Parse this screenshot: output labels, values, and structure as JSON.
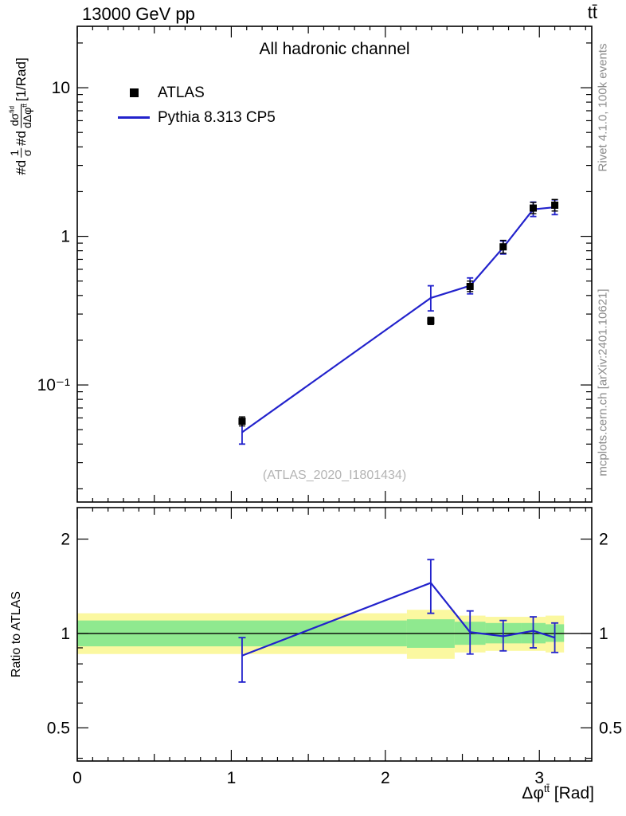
{
  "header": {
    "left": "13000 GeV pp",
    "right": "tt̄"
  },
  "main_plot": {
    "title": "All hadronic channel",
    "watermark": "(ATLAS_2020_I1801434)",
    "ylabel": {
      "pre1": "#d",
      "frac1_num": "1",
      "frac1_den": "σ",
      "pre2": "#d",
      "frac2_num_base": "dσ",
      "frac2_num_sup": "fid",
      "frac2_den_base": "dΔφ",
      "frac2_den_sup": "tt̄",
      "suffix": "[1/Rad]"
    }
  },
  "legend": {
    "atlas": "ATLAS",
    "pythia": "Pythia 8.313 CP5"
  },
  "ratio_plot": {
    "ylabel": "Ratio to ATLAS"
  },
  "x_axis": {
    "title_base": "Δφ",
    "title_sup": "tt̄",
    "title_unit": "[Rad]"
  },
  "sidebar_right": {
    "top": "Rivet 4.1.0,  100k events",
    "bottom": "mcplots.cern.ch [arXiv:2401.10621]"
  },
  "colors": {
    "accent_blue": "#2222cc",
    "band_yellow": "#fbf8a0",
    "band_green": "#8fe98f",
    "marker_black": "#000000",
    "text_gray": "#8c8c8c",
    "watermark_gray": "#b4b4b4"
  },
  "chart_data": {
    "type": "line",
    "title": "All hadronic channel",
    "xlabel": "Δφ^tt [Rad]",
    "ylabel": "1/σ dσ/dΔφ^tt [1/Rad]",
    "legend_position": "top-left",
    "grid": false,
    "x_range": [
      0,
      3.34
    ],
    "xticks": [
      {
        "v": 0,
        "label": "0"
      },
      {
        "v": 1,
        "label": "1"
      },
      {
        "v": 2,
        "label": "2"
      },
      {
        "v": 3,
        "label": "3"
      }
    ],
    "bin_edges": [
      0,
      2.14,
      2.45,
      2.65,
      2.88,
      3.04,
      3.16
    ],
    "x": [
      1.07,
      2.295,
      2.55,
      2.765,
      2.96,
      3.1
    ],
    "main": {
      "yscale": "log",
      "ylim": [
        0.0163,
        25.9
      ],
      "yticks": [
        {
          "v": 0.1,
          "label": "10⁻¹"
        },
        {
          "v": 1,
          "label": "1"
        },
        {
          "v": 10,
          "label": "10"
        }
      ],
      "series": [
        {
          "name": "ATLAS",
          "style": "black-squares",
          "y": [
            0.057,
            0.27,
            0.46,
            0.85,
            1.55,
            1.62
          ],
          "yerr_lo": [
            0.053,
            0.255,
            0.425,
            0.77,
            1.42,
            1.48
          ],
          "yerr_hi": [
            0.061,
            0.285,
            0.5,
            0.94,
            1.69,
            1.77
          ]
        },
        {
          "name": "Pythia 8.313 CP5",
          "style": "blue-line",
          "y": [
            0.048,
            0.385,
            0.465,
            0.84,
            1.52,
            1.57
          ],
          "yerr_lo": [
            0.04,
            0.315,
            0.41,
            0.76,
            1.36,
            1.4
          ],
          "yerr_hi": [
            0.0565,
            0.465,
            0.525,
            0.93,
            1.7,
            1.76
          ]
        }
      ]
    },
    "ratio": {
      "yscale": "log",
      "ylim": [
        0.392,
        2.52
      ],
      "baseline": 1,
      "yticks": [
        {
          "v": 0.5,
          "label": "0.5"
        },
        {
          "v": 1,
          "label": "1"
        },
        {
          "v": 2,
          "label": "2"
        }
      ],
      "minor_ticks": [
        0.4,
        0.6,
        0.7,
        0.8,
        0.9
      ],
      "y": [
        0.85,
        1.45,
        1.01,
        0.98,
        1.02,
        0.97
      ],
      "yerr_lo": [
        0.7,
        1.16,
        0.86,
        0.88,
        0.9,
        0.87
      ],
      "yerr_hi": [
        0.97,
        1.72,
        1.18,
        1.1,
        1.13,
        1.08
      ],
      "bands": [
        {
          "x0": 0,
          "x1": 2.14,
          "green": [
            0.91,
            1.1
          ],
          "yellow": [
            0.86,
            1.16
          ]
        },
        {
          "x0": 2.14,
          "x1": 2.45,
          "green": [
            0.9,
            1.11
          ],
          "yellow": [
            0.83,
            1.19
          ]
        },
        {
          "x0": 2.45,
          "x1": 2.65,
          "green": [
            0.92,
            1.09
          ],
          "yellow": [
            0.87,
            1.14
          ]
        },
        {
          "x0": 2.65,
          "x1": 2.88,
          "green": [
            0.93,
            1.08
          ],
          "yellow": [
            0.88,
            1.13
          ]
        },
        {
          "x0": 2.88,
          "x1": 3.04,
          "green": [
            0.93,
            1.08
          ],
          "yellow": [
            0.88,
            1.13
          ]
        },
        {
          "x0": 3.04,
          "x1": 3.16,
          "green": [
            0.94,
            1.07
          ],
          "yellow": [
            0.87,
            1.14
          ]
        }
      ]
    }
  }
}
